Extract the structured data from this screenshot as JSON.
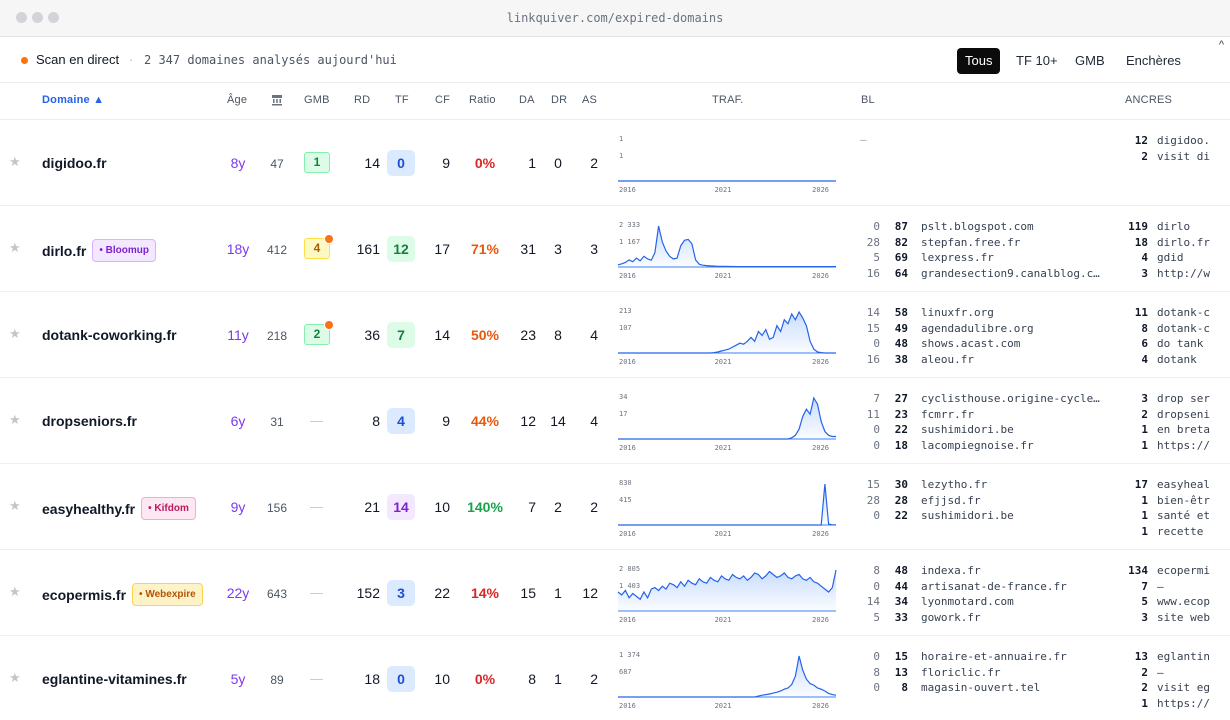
{
  "browser": {
    "url": "linkquiver.com/expired-domains"
  },
  "toolbar": {
    "live_label": "Scan en direct",
    "separator": "·",
    "scan_info": "2 347 domaines analysés aujourd'hui",
    "filters": [
      "Tous",
      "TF 10+",
      "GMB",
      "Enchères"
    ],
    "active_filter": "Tous"
  },
  "columns": {
    "domain": "Domaine ▲",
    "age": "Âge",
    "archive_icon": "archive-icon",
    "gmb": "GMB",
    "rd": "RD",
    "tf": "TF",
    "cf": "CF",
    "ratio": "Ratio",
    "da": "DA",
    "dr": "DR",
    "as": "AS",
    "traffic": "TRAF.",
    "backlinks": "BL",
    "anchors": "ANCRES"
  },
  "colors": {
    "accent": "#2563eb",
    "live": "#f97316",
    "age": "#7c3aed",
    "ratio_red": "#dc2626",
    "ratio_orange": "#ea580c",
    "ratio_green": "#16a34a"
  },
  "rows": [
    {
      "domain": "digidoo.fr",
      "tag": null,
      "tag_color": null,
      "age": "8y",
      "archive": "47",
      "gmb": "1",
      "gmb_notify": false,
      "gmb_style": "green",
      "rd": "14",
      "tf": "0",
      "tf_style": "blue",
      "cf": "9",
      "ratio": "0%",
      "ratio_color": "#dc2626",
      "da": "1",
      "dr": "0",
      "as": "2",
      "traffic": {
        "max_label": "1",
        "mid_label": "1",
        "years": [
          "2016",
          "2021",
          "2026"
        ],
        "values": [
          0,
          0,
          0,
          0,
          0,
          0,
          0,
          0,
          0,
          0,
          0,
          0,
          0,
          0,
          0,
          0,
          0,
          0,
          0,
          0,
          0,
          0,
          0,
          0,
          0,
          0,
          0,
          0,
          0,
          0,
          0,
          0,
          0,
          0,
          0,
          0,
          0,
          0,
          0,
          0,
          0,
          0,
          0,
          0,
          0,
          0,
          0,
          0,
          0,
          0,
          0,
          0,
          0,
          0,
          0,
          0,
          0,
          0,
          0,
          0
        ]
      },
      "backlinks": [],
      "backlinks_empty": "—",
      "anchors": [
        {
          "n": "12",
          "t": "digidoo."
        },
        {
          "n": "2",
          "t": "visit di"
        }
      ]
    },
    {
      "domain": "dirlo.fr",
      "tag": "• Bloomup",
      "tag_color": "purple",
      "age": "18y",
      "archive": "412",
      "gmb": "4",
      "gmb_notify": true,
      "gmb_style": "yellow",
      "rd": "161",
      "tf": "12",
      "tf_style": "green",
      "cf": "17",
      "ratio": "71%",
      "ratio_color": "#ea580c",
      "da": "31",
      "dr": "3",
      "as": "3",
      "traffic": {
        "max_label": "2 333",
        "mid_label": "1 167",
        "years": [
          "2016",
          "2021",
          "2026"
        ],
        "values": [
          120,
          180,
          250,
          400,
          300,
          500,
          350,
          600,
          450,
          380,
          800,
          2300,
          1400,
          900,
          600,
          450,
          500,
          1200,
          1500,
          1550,
          1300,
          400,
          150,
          100,
          80,
          60,
          50,
          40,
          40,
          35,
          30,
          30,
          25,
          25,
          25,
          20,
          20,
          20,
          20,
          20,
          20,
          20,
          20,
          20,
          20,
          20,
          20,
          20,
          20,
          20,
          20,
          20,
          20,
          20,
          20,
          20,
          20,
          20,
          20,
          20
        ]
      },
      "backlinks": [
        {
          "a": "0",
          "b": "87",
          "c": "pslt.blogspot.com"
        },
        {
          "a": "28",
          "b": "82",
          "c": "stepfan.free.fr"
        },
        {
          "a": "5",
          "b": "69",
          "c": "lexpress.fr"
        },
        {
          "a": "16",
          "b": "64",
          "c": "grandesection9.canalblog.c…"
        }
      ],
      "anchors": [
        {
          "n": "119",
          "t": "dirlo"
        },
        {
          "n": "18",
          "t": "dirlo.fr"
        },
        {
          "n": "4",
          "t": "gdid"
        },
        {
          "n": "3",
          "t": "http://w"
        }
      ]
    },
    {
      "domain": "dotank-coworking.fr",
      "tag": null,
      "tag_color": null,
      "age": "11y",
      "archive": "218",
      "gmb": "2",
      "gmb_notify": true,
      "gmb_style": "green",
      "rd": "36",
      "tf": "7",
      "tf_style": "green",
      "cf": "14",
      "ratio": "50%",
      "ratio_color": "#ea580c",
      "da": "23",
      "dr": "8",
      "as": "4",
      "traffic": {
        "max_label": "213",
        "mid_label": "107",
        "years": [
          "2016",
          "2021",
          "2026"
        ],
        "values": [
          0,
          0,
          0,
          0,
          0,
          0,
          0,
          0,
          0,
          0,
          0,
          0,
          0,
          0,
          0,
          0,
          0,
          0,
          0,
          0,
          0,
          0,
          0,
          0,
          0,
          0,
          2,
          5,
          10,
          15,
          20,
          30,
          40,
          50,
          45,
          60,
          80,
          60,
          110,
          90,
          120,
          70,
          80,
          140,
          110,
          170,
          150,
          200,
          170,
          210,
          180,
          140,
          60,
          20,
          5,
          2,
          0,
          0,
          0,
          0
        ]
      },
      "backlinks": [
        {
          "a": "14",
          "b": "58",
          "c": "linuxfr.org"
        },
        {
          "a": "15",
          "b": "49",
          "c": "agendadulibre.org"
        },
        {
          "a": "0",
          "b": "48",
          "c": "shows.acast.com"
        },
        {
          "a": "16",
          "b": "38",
          "c": "aleou.fr"
        }
      ],
      "anchors": [
        {
          "n": "11",
          "t": "dotank-c"
        },
        {
          "n": "8",
          "t": "dotank-c"
        },
        {
          "n": "6",
          "t": "do tank"
        },
        {
          "n": "4",
          "t": "dotank"
        }
      ]
    },
    {
      "domain": "dropseniors.fr",
      "tag": null,
      "tag_color": null,
      "age": "6y",
      "archive": "31",
      "gmb": "—",
      "gmb_notify": false,
      "gmb_style": "none",
      "rd": "8",
      "tf": "4",
      "tf_style": "blue",
      "cf": "9",
      "ratio": "44%",
      "ratio_color": "#ea580c",
      "da": "12",
      "dr": "14",
      "as": "4",
      "traffic": {
        "max_label": "34",
        "mid_label": "17",
        "years": [
          "2016",
          "2021",
          "2026"
        ],
        "values": [
          0,
          0,
          0,
          0,
          0,
          0,
          0,
          0,
          0,
          0,
          0,
          0,
          0,
          0,
          0,
          0,
          0,
          0,
          0,
          0,
          0,
          0,
          0,
          0,
          0,
          0,
          0,
          0,
          0,
          0,
          0,
          0,
          0,
          0,
          0,
          0,
          0,
          0,
          0,
          0,
          0,
          0,
          0,
          0,
          0,
          0,
          0,
          1,
          3,
          8,
          18,
          24,
          20,
          33,
          28,
          14,
          6,
          3,
          2,
          2
        ]
      },
      "backlinks": [
        {
          "a": "7",
          "b": "27",
          "c": "cyclisthouse.origine-cycle…"
        },
        {
          "a": "11",
          "b": "23",
          "c": "fcmrr.fr"
        },
        {
          "a": "0",
          "b": "22",
          "c": "sushimidori.be"
        },
        {
          "a": "0",
          "b": "18",
          "c": "lacompiegnoise.fr"
        }
      ],
      "anchors": [
        {
          "n": "3",
          "t": "drop ser"
        },
        {
          "n": "2",
          "t": "dropseni"
        },
        {
          "n": "1",
          "t": "en breta"
        },
        {
          "n": "1",
          "t": "https://"
        }
      ]
    },
    {
      "domain": "easyhealthy.fr",
      "tag": "• Kifdom",
      "tag_color": "pink",
      "age": "9y",
      "archive": "156",
      "gmb": "—",
      "gmb_notify": false,
      "gmb_style": "none",
      "rd": "21",
      "tf": "14",
      "tf_style": "purple",
      "cf": "10",
      "ratio": "140%",
      "ratio_color": "#16a34a",
      "da": "7",
      "dr": "2",
      "as": "2",
      "traffic": {
        "max_label": "830",
        "mid_label": "415",
        "years": [
          "2016",
          "2021",
          "2026"
        ],
        "values": [
          0,
          0,
          0,
          0,
          0,
          0,
          0,
          0,
          0,
          0,
          0,
          0,
          0,
          0,
          0,
          0,
          0,
          0,
          0,
          0,
          0,
          0,
          0,
          0,
          0,
          0,
          0,
          0,
          0,
          0,
          0,
          0,
          0,
          0,
          0,
          0,
          0,
          0,
          0,
          0,
          0,
          0,
          0,
          0,
          0,
          0,
          0,
          0,
          0,
          0,
          0,
          0,
          0,
          0,
          0,
          0,
          830,
          20,
          5,
          5
        ]
      },
      "backlinks": [
        {
          "a": "15",
          "b": "30",
          "c": "lezytho.fr"
        },
        {
          "a": "28",
          "b": "28",
          "c": "efjjsd.fr"
        },
        {
          "a": "0",
          "b": "22",
          "c": "sushimidori.be"
        }
      ],
      "anchors": [
        {
          "n": "17",
          "t": "easyheal"
        },
        {
          "n": "1",
          "t": "bien-êtr"
        },
        {
          "n": "1",
          "t": "santé et"
        },
        {
          "n": "1",
          "t": "recette"
        }
      ]
    },
    {
      "domain": "ecopermis.fr",
      "tag": "• Webexpire",
      "tag_color": "amber",
      "age": "22y",
      "archive": "643",
      "gmb": "—",
      "gmb_notify": false,
      "gmb_style": "none",
      "rd": "152",
      "tf": "3",
      "tf_style": "blue",
      "cf": "22",
      "ratio": "14%",
      "ratio_color": "#dc2626",
      "da": "15",
      "dr": "1",
      "as": "12",
      "traffic": {
        "max_label": "2 805",
        "mid_label": "1 403",
        "years": [
          "2016",
          "2021",
          "2026"
        ],
        "values": [
          1300,
          1100,
          1400,
          900,
          1200,
          1000,
          800,
          1300,
          900,
          1500,
          1600,
          1400,
          1700,
          1500,
          1900,
          1800,
          1600,
          2000,
          1700,
          2100,
          1900,
          1800,
          2200,
          2000,
          1900,
          2300,
          2100,
          2000,
          2400,
          2200,
          2100,
          2500,
          2300,
          2200,
          2400,
          2100,
          2300,
          2600,
          2500,
          2200,
          2400,
          2700,
          2500,
          2300,
          2400,
          2600,
          2300,
          2200,
          2400,
          2500,
          2200,
          2100,
          2300,
          2000,
          1900,
          1700,
          1500,
          1300,
          1600,
          2805
        ]
      },
      "backlinks": [
        {
          "a": "8",
          "b": "48",
          "c": "indexa.fr"
        },
        {
          "a": "0",
          "b": "44",
          "c": "artisanat-de-france.fr"
        },
        {
          "a": "14",
          "b": "34",
          "c": "lyonmotard.com"
        },
        {
          "a": "5",
          "b": "33",
          "c": "gowork.fr"
        }
      ],
      "anchors": [
        {
          "n": "134",
          "t": "ecopermi"
        },
        {
          "n": "7",
          "t": "—"
        },
        {
          "n": "5",
          "t": "www.ecop"
        },
        {
          "n": "3",
          "t": "site web"
        }
      ]
    },
    {
      "domain": "eglantine-vitamines.fr",
      "tag": null,
      "tag_color": null,
      "age": "5y",
      "archive": "89",
      "gmb": "—",
      "gmb_notify": false,
      "gmb_style": "none",
      "rd": "18",
      "tf": "0",
      "tf_style": "blue",
      "cf": "10",
      "ratio": "0%",
      "ratio_color": "#dc2626",
      "da": "8",
      "dr": "1",
      "as": "2",
      "traffic": {
        "max_label": "1 374",
        "mid_label": "687",
        "years": [
          "2016",
          "2021",
          "2026"
        ],
        "values": [
          0,
          0,
          0,
          0,
          0,
          0,
          0,
          0,
          0,
          0,
          0,
          0,
          0,
          0,
          0,
          0,
          0,
          0,
          0,
          0,
          0,
          0,
          0,
          0,
          0,
          0,
          0,
          0,
          0,
          0,
          0,
          0,
          0,
          0,
          0,
          0,
          0,
          0,
          30,
          60,
          80,
          100,
          130,
          160,
          200,
          260,
          300,
          420,
          700,
          1374,
          900,
          600,
          450,
          400,
          300,
          260,
          200,
          120,
          80,
          60
        ]
      },
      "backlinks": [
        {
          "a": "0",
          "b": "15",
          "c": "horaire-et-annuaire.fr"
        },
        {
          "a": "8",
          "b": "13",
          "c": "floriclic.fr"
        },
        {
          "a": "0",
          "b": "8",
          "c": "magasin-ouvert.tel"
        }
      ],
      "anchors": [
        {
          "n": "13",
          "t": "eglantin"
        },
        {
          "n": "2",
          "t": "—"
        },
        {
          "n": "2",
          "t": "visit eg"
        },
        {
          "n": "1",
          "t": "https://"
        }
      ]
    }
  ]
}
